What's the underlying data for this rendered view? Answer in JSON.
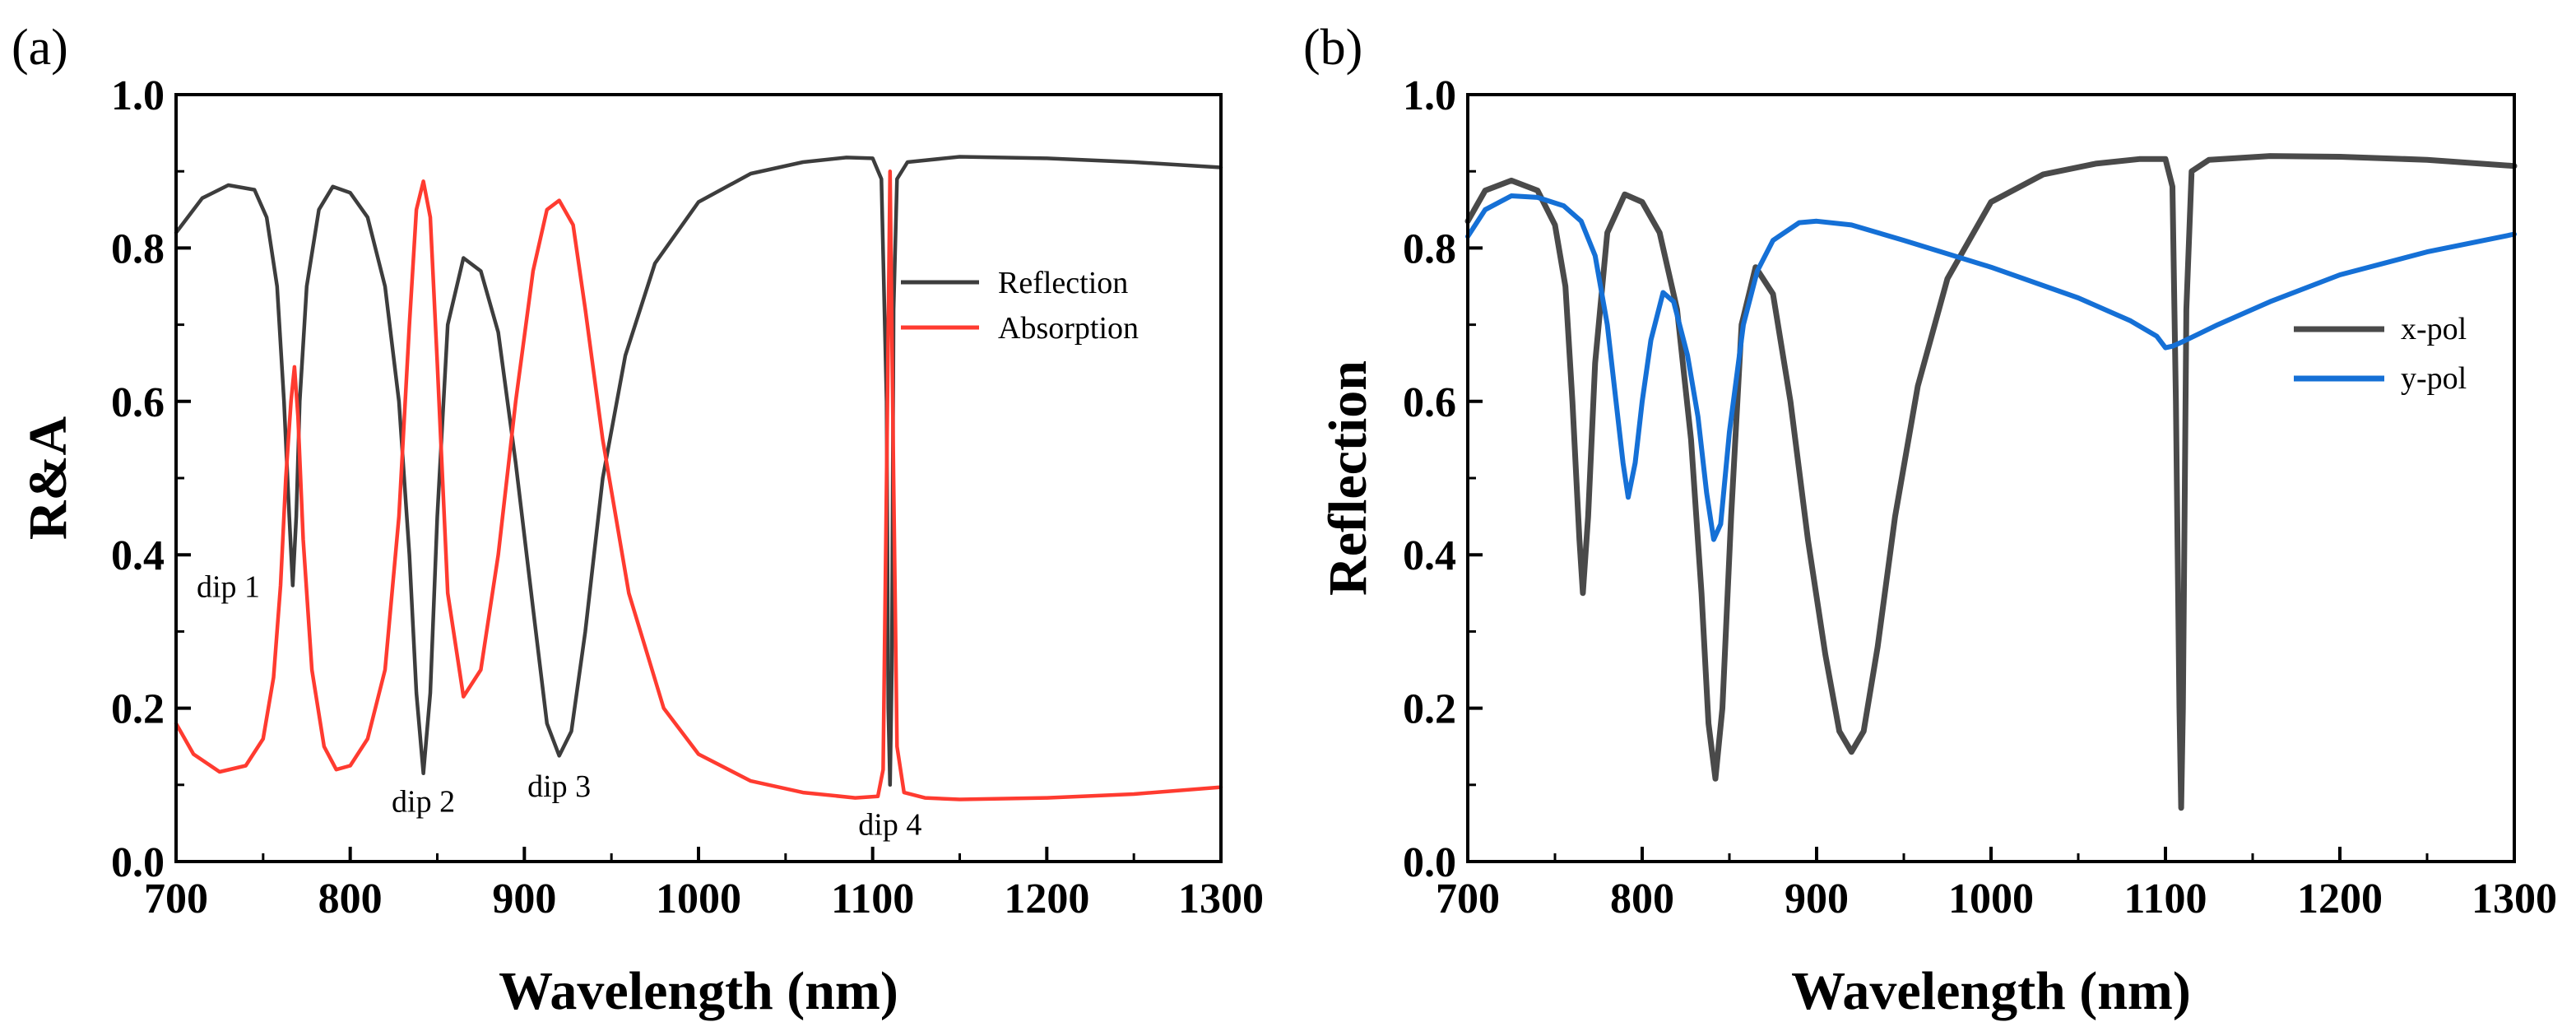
{
  "chart_data": [
    {
      "panel_label": "(a)",
      "type": "line",
      "xlabel": "Wavelength (nm)",
      "ylabel": "R&A",
      "xlim": [
        700,
        1300
      ],
      "ylim": [
        0.0,
        1.0
      ],
      "xticks": [
        "700",
        "800",
        "900",
        "1000",
        "1100",
        "1200",
        "1300"
      ],
      "yticks": [
        "0.0",
        "0.2",
        "0.4",
        "0.6",
        "0.8",
        "1.0"
      ],
      "legend_position": "right-middle",
      "series": [
        {
          "name": "Reflection",
          "color": "#3d3d3d",
          "points": [
            [
              700,
              0.82
            ],
            [
              715,
              0.865
            ],
            [
              730,
              0.882
            ],
            [
              745,
              0.876
            ],
            [
              752,
              0.84
            ],
            [
              758,
              0.75
            ],
            [
              762,
              0.6
            ],
            [
              765,
              0.45
            ],
            [
              767,
              0.36
            ],
            [
              769,
              0.45
            ],
            [
              771,
              0.6
            ],
            [
              775,
              0.75
            ],
            [
              782,
              0.85
            ],
            [
              790,
              0.88
            ],
            [
              800,
              0.872
            ],
            [
              810,
              0.84
            ],
            [
              820,
              0.75
            ],
            [
              828,
              0.6
            ],
            [
              834,
              0.4
            ],
            [
              838,
              0.22
            ],
            [
              842,
              0.115
            ],
            [
              846,
              0.22
            ],
            [
              850,
              0.45
            ],
            [
              856,
              0.7
            ],
            [
              865,
              0.787
            ],
            [
              875,
              0.77
            ],
            [
              885,
              0.69
            ],
            [
              895,
              0.52
            ],
            [
              905,
              0.33
            ],
            [
              913,
              0.18
            ],
            [
              920,
              0.138
            ],
            [
              927,
              0.17
            ],
            [
              935,
              0.3
            ],
            [
              945,
              0.5
            ],
            [
              958,
              0.66
            ],
            [
              975,
              0.78
            ],
            [
              1000,
              0.86
            ],
            [
              1030,
              0.897
            ],
            [
              1060,
              0.912
            ],
            [
              1085,
              0.918
            ],
            [
              1100,
              0.917
            ],
            [
              1105,
              0.89
            ],
            [
              1108,
              0.6
            ],
            [
              1109,
              0.2
            ],
            [
              1110,
              0.1
            ],
            [
              1111,
              0.25
            ],
            [
              1112,
              0.72
            ],
            [
              1114,
              0.89
            ],
            [
              1120,
              0.912
            ],
            [
              1150,
              0.919
            ],
            [
              1200,
              0.917
            ],
            [
              1250,
              0.912
            ],
            [
              1300,
              0.905
            ]
          ]
        },
        {
          "name": "Absorption",
          "color": "#ff3b30",
          "points": [
            [
              700,
              0.18
            ],
            [
              710,
              0.14
            ],
            [
              725,
              0.117
            ],
            [
              740,
              0.125
            ],
            [
              750,
              0.16
            ],
            [
              756,
              0.24
            ],
            [
              760,
              0.36
            ],
            [
              763,
              0.5
            ],
            [
              766,
              0.6
            ],
            [
              768,
              0.645
            ],
            [
              770,
              0.58
            ],
            [
              773,
              0.42
            ],
            [
              778,
              0.25
            ],
            [
              785,
              0.15
            ],
            [
              792,
              0.12
            ],
            [
              800,
              0.125
            ],
            [
              810,
              0.16
            ],
            [
              820,
              0.25
            ],
            [
              828,
              0.45
            ],
            [
              834,
              0.7
            ],
            [
              838,
              0.85
            ],
            [
              842,
              0.887
            ],
            [
              846,
              0.84
            ],
            [
              850,
              0.65
            ],
            [
              856,
              0.35
            ],
            [
              865,
              0.215
            ],
            [
              875,
              0.25
            ],
            [
              885,
              0.4
            ],
            [
              895,
              0.6
            ],
            [
              905,
              0.77
            ],
            [
              913,
              0.85
            ],
            [
              920,
              0.862
            ],
            [
              928,
              0.83
            ],
            [
              935,
              0.72
            ],
            [
              945,
              0.55
            ],
            [
              960,
              0.35
            ],
            [
              980,
              0.2
            ],
            [
              1000,
              0.14
            ],
            [
              1030,
              0.105
            ],
            [
              1060,
              0.09
            ],
            [
              1090,
              0.083
            ],
            [
              1103,
              0.085
            ],
            [
              1106,
              0.12
            ],
            [
              1108,
              0.5
            ],
            [
              1110,
              0.9
            ],
            [
              1112,
              0.5
            ],
            [
              1114,
              0.15
            ],
            [
              1118,
              0.09
            ],
            [
              1130,
              0.083
            ],
            [
              1150,
              0.081
            ],
            [
              1200,
              0.083
            ],
            [
              1250,
              0.088
            ],
            [
              1300,
              0.097
            ]
          ]
        }
      ],
      "annotations": [
        {
          "text": "dip 1",
          "x": 730,
          "y": 0.345
        },
        {
          "text": "dip 2",
          "x": 842,
          "y": 0.065
        },
        {
          "text": "dip 3",
          "x": 920,
          "y": 0.085
        },
        {
          "text": "dip 4",
          "x": 1110,
          "y": 0.035
        }
      ]
    },
    {
      "panel_label": "(b)",
      "type": "line",
      "xlabel": "Wavelength (nm)",
      "ylabel": "Reflection",
      "xlim": [
        700,
        1300
      ],
      "ylim": [
        0.0,
        1.0
      ],
      "xticks": [
        "700",
        "800",
        "900",
        "1000",
        "1100",
        "1200",
        "1300"
      ],
      "yticks": [
        "0.0",
        "0.2",
        "0.4",
        "0.6",
        "0.8",
        "1.0"
      ],
      "legend_position": "right-middle",
      "series": [
        {
          "name": "x-pol",
          "color": "#4a4a4a",
          "points": [
            [
              700,
              0.835
            ],
            [
              710,
              0.875
            ],
            [
              725,
              0.888
            ],
            [
              740,
              0.875
            ],
            [
              750,
              0.83
            ],
            [
              756,
              0.75
            ],
            [
              760,
              0.6
            ],
            [
              764,
              0.42
            ],
            [
              766,
              0.35
            ],
            [
              769,
              0.45
            ],
            [
              773,
              0.65
            ],
            [
              780,
              0.82
            ],
            [
              790,
              0.87
            ],
            [
              800,
              0.86
            ],
            [
              810,
              0.82
            ],
            [
              820,
              0.72
            ],
            [
              828,
              0.55
            ],
            [
              834,
              0.35
            ],
            [
              838,
              0.18
            ],
            [
              842,
              0.108
            ],
            [
              846,
              0.2
            ],
            [
              851,
              0.45
            ],
            [
              857,
              0.7
            ],
            [
              865,
              0.775
            ],
            [
              875,
              0.74
            ],
            [
              885,
              0.6
            ],
            [
              895,
              0.42
            ],
            [
              905,
              0.27
            ],
            [
              913,
              0.17
            ],
            [
              920,
              0.143
            ],
            [
              927,
              0.17
            ],
            [
              935,
              0.28
            ],
            [
              945,
              0.45
            ],
            [
              958,
              0.62
            ],
            [
              975,
              0.76
            ],
            [
              1000,
              0.86
            ],
            [
              1030,
              0.896
            ],
            [
              1060,
              0.91
            ],
            [
              1085,
              0.916
            ],
            [
              1100,
              0.916
            ],
            [
              1104,
              0.88
            ],
            [
              1106,
              0.6
            ],
            [
              1108,
              0.2
            ],
            [
              1109,
              0.07
            ],
            [
              1110,
              0.2
            ],
            [
              1112,
              0.72
            ],
            [
              1115,
              0.9
            ],
            [
              1125,
              0.915
            ],
            [
              1160,
              0.92
            ],
            [
              1200,
              0.919
            ],
            [
              1250,
              0.915
            ],
            [
              1300,
              0.907
            ]
          ]
        },
        {
          "name": "y-pol",
          "color": "#1570d6",
          "points": [
            [
              700,
              0.815
            ],
            [
              710,
              0.85
            ],
            [
              725,
              0.868
            ],
            [
              740,
              0.866
            ],
            [
              755,
              0.855
            ],
            [
              765,
              0.835
            ],
            [
              773,
              0.79
            ],
            [
              780,
              0.7
            ],
            [
              785,
              0.6
            ],
            [
              789,
              0.52
            ],
            [
              792,
              0.475
            ],
            [
              796,
              0.52
            ],
            [
              800,
              0.6
            ],
            [
              805,
              0.68
            ],
            [
              812,
              0.742
            ],
            [
              818,
              0.73
            ],
            [
              826,
              0.66
            ],
            [
              832,
              0.58
            ],
            [
              837,
              0.48
            ],
            [
              841,
              0.42
            ],
            [
              845,
              0.44
            ],
            [
              850,
              0.56
            ],
            [
              858,
              0.7
            ],
            [
              866,
              0.77
            ],
            [
              875,
              0.81
            ],
            [
              890,
              0.833
            ],
            [
              900,
              0.835
            ],
            [
              920,
              0.83
            ],
            [
              950,
              0.81
            ],
            [
              1000,
              0.775
            ],
            [
              1050,
              0.735
            ],
            [
              1080,
              0.705
            ],
            [
              1095,
              0.685
            ],
            [
              1100,
              0.67
            ],
            [
              1104,
              0.672
            ],
            [
              1110,
              0.678
            ],
            [
              1130,
              0.7
            ],
            [
              1160,
              0.73
            ],
            [
              1200,
              0.765
            ],
            [
              1250,
              0.795
            ],
            [
              1300,
              0.818
            ]
          ]
        }
      ],
      "annotations": []
    }
  ]
}
